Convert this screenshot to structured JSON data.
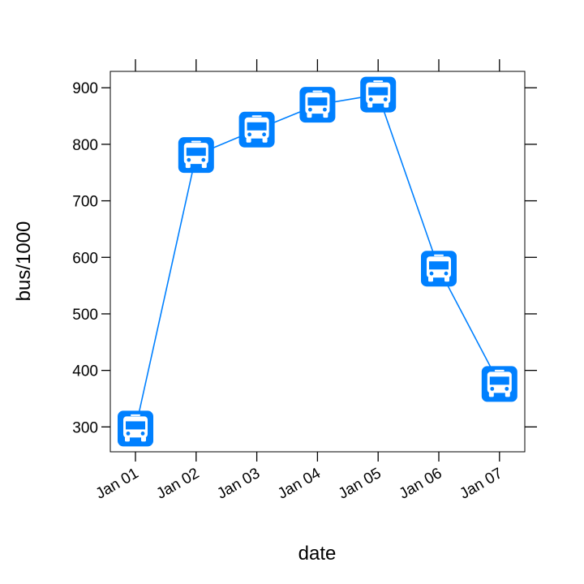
{
  "chart_data": {
    "type": "line",
    "title": "",
    "xlabel": "date",
    "ylabel": "bus/1000",
    "x": [
      "Jan 01",
      "Jan 02",
      "Jan 03",
      "Jan 04",
      "Jan 05",
      "Jan 06",
      "Jan 07"
    ],
    "series": [
      {
        "values": [
          297,
          781,
          826,
          870,
          888,
          580,
          376
        ]
      }
    ],
    "yticks": [
      300,
      400,
      500,
      600,
      700,
      800,
      900
    ],
    "ylim": [
      256,
      929
    ],
    "grid": false,
    "marker": "bus-icon",
    "colors": {
      "line": "#0080ff",
      "marker_bg": "#0080ff",
      "marker_fg": "#ffffff"
    }
  }
}
